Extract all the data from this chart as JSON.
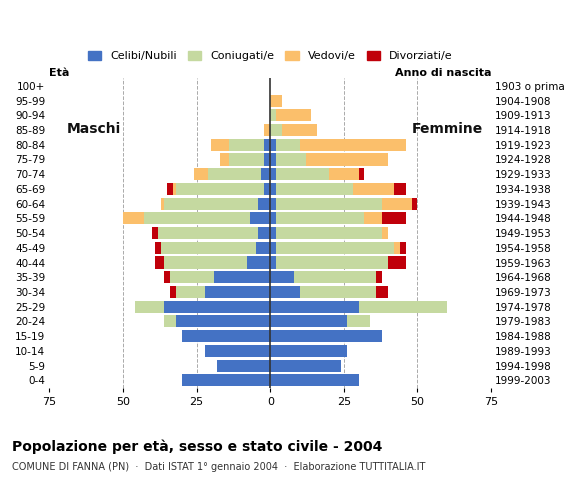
{
  "age_groups": [
    "0-4",
    "5-9",
    "10-14",
    "15-19",
    "20-24",
    "25-29",
    "30-34",
    "35-39",
    "40-44",
    "45-49",
    "50-54",
    "55-59",
    "60-64",
    "65-69",
    "70-74",
    "75-79",
    "80-84",
    "85-89",
    "90-94",
    "95-99",
    "100+"
  ],
  "birth_years": [
    "1999-2003",
    "1994-1998",
    "1989-1993",
    "1984-1988",
    "1979-1983",
    "1974-1978",
    "1969-1973",
    "1964-1968",
    "1959-1963",
    "1954-1958",
    "1949-1953",
    "1944-1948",
    "1939-1943",
    "1934-1938",
    "1929-1933",
    "1924-1928",
    "1919-1923",
    "1914-1918",
    "1909-1913",
    "1904-1908",
    "1903 o prima"
  ],
  "colors": {
    "celibe": "#4472C4",
    "coniugato": "#C5D9A0",
    "vedovo": "#FBBF6B",
    "divorziato": "#C0000A"
  },
  "male": {
    "celibe": [
      30,
      18,
      22,
      30,
      32,
      36,
      22,
      19,
      8,
      5,
      4,
      7,
      4,
      2,
      3,
      2,
      2,
      0,
      0,
      0,
      0
    ],
    "coniugato": [
      0,
      0,
      0,
      0,
      4,
      10,
      10,
      15,
      28,
      32,
      34,
      36,
      32,
      30,
      18,
      12,
      12,
      0,
      0,
      0,
      0
    ],
    "vedovo": [
      0,
      0,
      0,
      0,
      0,
      0,
      0,
      0,
      0,
      0,
      0,
      7,
      1,
      1,
      5,
      3,
      6,
      2,
      0,
      0,
      0
    ],
    "divorziato": [
      0,
      0,
      0,
      0,
      0,
      0,
      2,
      2,
      3,
      2,
      2,
      0,
      0,
      2,
      0,
      0,
      0,
      0,
      0,
      0,
      0
    ]
  },
  "female": {
    "nubile": [
      30,
      24,
      26,
      38,
      26,
      30,
      10,
      8,
      2,
      2,
      2,
      2,
      2,
      2,
      2,
      2,
      2,
      0,
      0,
      0,
      0
    ],
    "coniugata": [
      0,
      0,
      0,
      0,
      8,
      30,
      26,
      28,
      38,
      40,
      36,
      30,
      36,
      26,
      18,
      10,
      8,
      4,
      2,
      0,
      0
    ],
    "vedova": [
      0,
      0,
      0,
      0,
      0,
      0,
      0,
      0,
      0,
      2,
      2,
      6,
      10,
      14,
      10,
      28,
      36,
      12,
      12,
      4,
      0
    ],
    "divorziata": [
      0,
      0,
      0,
      0,
      0,
      0,
      4,
      2,
      6,
      2,
      0,
      8,
      2,
      4,
      2,
      0,
      0,
      0,
      0,
      0,
      0
    ]
  },
  "xlim": 75,
  "title": "Popolazione per età, sesso e stato civile - 2004",
  "subtitle": "COMUNE DI FANNA (PN)  ·  Dati ISTAT 1° gennaio 2004  ·  Elaborazione TUTTITALIA.IT",
  "ylabel_left": "Età",
  "ylabel_right": "Anno di nascita",
  "label_maschi": "Maschi",
  "label_femmine": "Femmine",
  "legend_labels": [
    "Celibi/Nubili",
    "Coniugati/e",
    "Vedovi/e",
    "Divorziati/e"
  ]
}
